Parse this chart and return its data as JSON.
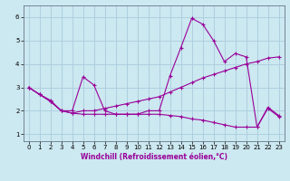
{
  "background_color": "#cce8f0",
  "grid_color": "#aaccdd",
  "line_color": "#990099",
  "marker_style": "+",
  "marker_size": 4,
  "xlabel": "Windchill (Refroidissement éolien,°C)",
  "xlim": [
    -0.5,
    23.5
  ],
  "ylim": [
    0.7,
    6.5
  ],
  "yticks": [
    1,
    2,
    3,
    4,
    5,
    6
  ],
  "xticks": [
    0,
    1,
    2,
    3,
    4,
    5,
    6,
    7,
    8,
    9,
    10,
    11,
    12,
    13,
    14,
    15,
    16,
    17,
    18,
    19,
    20,
    21,
    22,
    23
  ],
  "series": [
    {
      "x": [
        0,
        1,
        2,
        3,
        4,
        5,
        6,
        7,
        8,
        9,
        10,
        11,
        12,
        13,
        14,
        15,
        16,
        17,
        18,
        19,
        20,
        21,
        22,
        23
      ],
      "y": [
        3.0,
        2.7,
        2.45,
        2.0,
        2.0,
        3.45,
        3.1,
        2.0,
        1.85,
        1.85,
        1.85,
        2.0,
        2.0,
        3.5,
        4.7,
        5.95,
        5.7,
        5.0,
        4.1,
        4.45,
        4.3,
        1.3,
        2.15,
        1.8
      ]
    },
    {
      "x": [
        0,
        1,
        2,
        3,
        4,
        5,
        6,
        7,
        8,
        9,
        10,
        11,
        12,
        13,
        14,
        15,
        16,
        17,
        18,
        19,
        20,
        21,
        22,
        23
      ],
      "y": [
        3.0,
        2.7,
        2.4,
        2.0,
        1.9,
        2.0,
        2.0,
        2.1,
        2.2,
        2.3,
        2.4,
        2.5,
        2.6,
        2.8,
        3.0,
        3.2,
        3.4,
        3.55,
        3.7,
        3.85,
        4.0,
        4.1,
        4.25,
        4.3
      ]
    },
    {
      "x": [
        0,
        1,
        2,
        3,
        4,
        5,
        6,
        7,
        8,
        9,
        10,
        11,
        12,
        13,
        14,
        15,
        16,
        17,
        18,
        19,
        20,
        21,
        22,
        23
      ],
      "y": [
        3.0,
        2.7,
        2.4,
        2.0,
        1.9,
        1.85,
        1.85,
        1.85,
        1.85,
        1.85,
        1.85,
        1.85,
        1.85,
        1.8,
        1.75,
        1.65,
        1.6,
        1.5,
        1.4,
        1.3,
        1.3,
        1.3,
        2.1,
        1.75
      ]
    }
  ]
}
